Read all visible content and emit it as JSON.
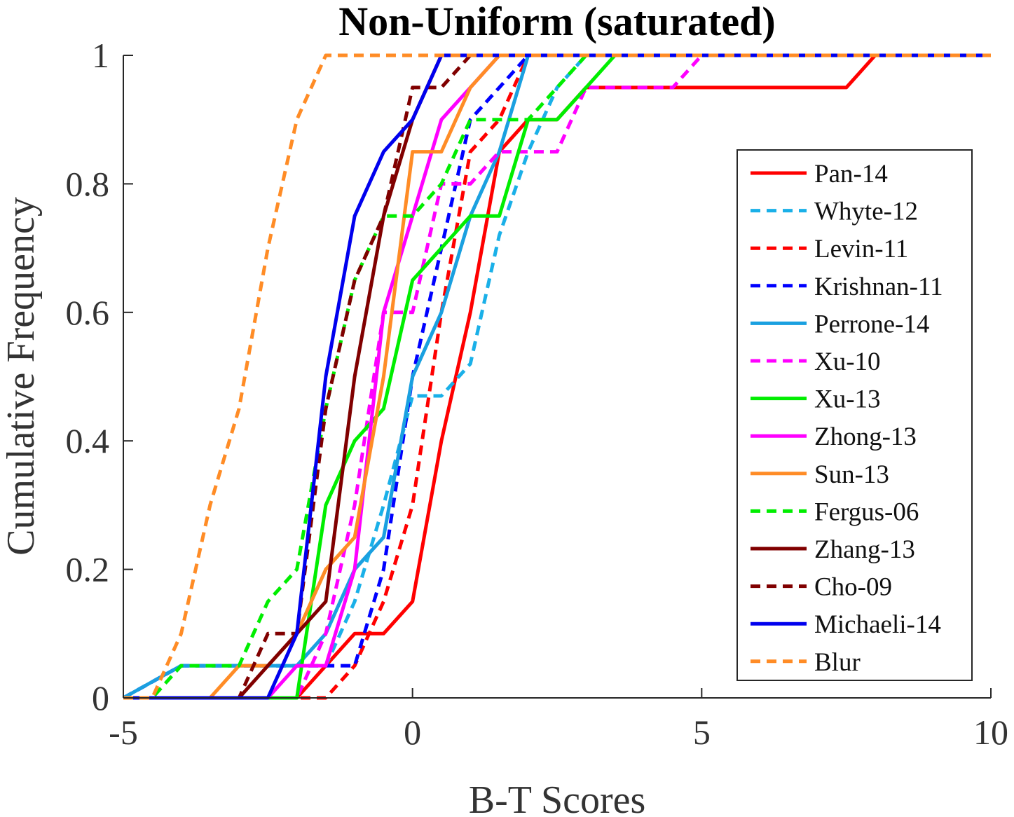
{
  "chart_data": {
    "type": "line",
    "title": "Non-Uniform (saturated)",
    "xlabel": "B-T Scores",
    "ylabel": "Cumulative Frequency",
    "xlim": [
      -5,
      10
    ],
    "ylim": [
      0,
      1
    ],
    "xticks": [
      -5,
      0,
      5,
      10
    ],
    "xtick_labels": [
      "-5",
      "0",
      "5",
      "10"
    ],
    "yticks": [
      0,
      0.2,
      0.4,
      0.6,
      0.8,
      1
    ],
    "ytick_labels": [
      "0",
      "0.2",
      "0.4",
      "0.6",
      "0.8",
      "1"
    ],
    "legend_position": "right",
    "series": [
      {
        "name": "Pan-14",
        "color": "#ff0000",
        "dashed": false,
        "points": [
          [
            -5,
            0
          ],
          [
            -2,
            0
          ],
          [
            -1.5,
            0.05
          ],
          [
            -1,
            0.1
          ],
          [
            -0.5,
            0.1
          ],
          [
            0,
            0.15
          ],
          [
            0.5,
            0.4
          ],
          [
            1,
            0.6
          ],
          [
            1.5,
            0.85
          ],
          [
            2,
            0.9
          ],
          [
            2.5,
            0.9
          ],
          [
            3,
            0.95
          ],
          [
            7.5,
            0.95
          ],
          [
            8,
            1
          ],
          [
            10,
            1
          ]
        ]
      },
      {
        "name": "Whyte-12",
        "color": "#1ab0e8",
        "dashed": true,
        "points": [
          [
            -5,
            0
          ],
          [
            -4,
            0.05
          ],
          [
            -1.5,
            0.05
          ],
          [
            -1,
            0.15
          ],
          [
            -0.5,
            0.3
          ],
          [
            0,
            0.47
          ],
          [
            0.5,
            0.47
          ],
          [
            1,
            0.52
          ],
          [
            1.5,
            0.72
          ],
          [
            2,
            0.85
          ],
          [
            2.5,
            0.95
          ],
          [
            3,
            1
          ],
          [
            10,
            1
          ]
        ]
      },
      {
        "name": "Levin-11",
        "color": "#ff0000",
        "dashed": true,
        "points": [
          [
            -5,
            0
          ],
          [
            -1.5,
            0
          ],
          [
            -1,
            0.05
          ],
          [
            -0.5,
            0.15
          ],
          [
            0,
            0.3
          ],
          [
            0.5,
            0.6
          ],
          [
            1,
            0.85
          ],
          [
            1.5,
            0.9
          ],
          [
            2,
            1
          ],
          [
            10,
            1
          ]
        ]
      },
      {
        "name": "Krishnan-11",
        "color": "#0000ff",
        "dashed": true,
        "points": [
          [
            -5,
            0
          ],
          [
            -4,
            0.05
          ],
          [
            -1,
            0.05
          ],
          [
            -0.5,
            0.2
          ],
          [
            0,
            0.5
          ],
          [
            0.5,
            0.7
          ],
          [
            1,
            0.9
          ],
          [
            1.5,
            0.95
          ],
          [
            2,
            1
          ],
          [
            10,
            1
          ]
        ]
      },
      {
        "name": "Perrone-14",
        "color": "#1aa0e0",
        "dashed": false,
        "points": [
          [
            -5,
            0
          ],
          [
            -4,
            0.05
          ],
          [
            -2,
            0.05
          ],
          [
            -1.5,
            0.1
          ],
          [
            -1,
            0.2
          ],
          [
            -0.5,
            0.25
          ],
          [
            0,
            0.5
          ],
          [
            0.5,
            0.6
          ],
          [
            1,
            0.75
          ],
          [
            1.5,
            0.85
          ],
          [
            2,
            1
          ],
          [
            10,
            1
          ]
        ]
      },
      {
        "name": "Xu-10",
        "color": "#ff00ff",
        "dashed": true,
        "points": [
          [
            -5,
            0
          ],
          [
            -2,
            0
          ],
          [
            -1.5,
            0.1
          ],
          [
            -1,
            0.3
          ],
          [
            -0.5,
            0.6
          ],
          [
            0,
            0.6
          ],
          [
            0.5,
            0.8
          ],
          [
            1,
            0.8
          ],
          [
            1.5,
            0.85
          ],
          [
            2.5,
            0.85
          ],
          [
            3,
            0.95
          ],
          [
            4.5,
            0.95
          ],
          [
            5,
            1
          ],
          [
            10,
            1
          ]
        ]
      },
      {
        "name": "Xu-13",
        "color": "#00ee00",
        "dashed": false,
        "points": [
          [
            -5,
            0
          ],
          [
            -2,
            0
          ],
          [
            -1.5,
            0.3
          ],
          [
            -1,
            0.4
          ],
          [
            -0.5,
            0.45
          ],
          [
            0,
            0.65
          ],
          [
            0.5,
            0.7
          ],
          [
            1,
            0.75
          ],
          [
            1.5,
            0.75
          ],
          [
            2,
            0.9
          ],
          [
            2.5,
            0.9
          ],
          [
            3,
            0.95
          ],
          [
            3.5,
            1
          ],
          [
            10,
            1
          ]
        ]
      },
      {
        "name": "Zhong-13",
        "color": "#ff00ff",
        "dashed": false,
        "points": [
          [
            -5,
            0
          ],
          [
            -2.5,
            0
          ],
          [
            -2,
            0.05
          ],
          [
            -1.5,
            0.05
          ],
          [
            -1,
            0.2
          ],
          [
            -0.5,
            0.6
          ],
          [
            0,
            0.75
          ],
          [
            0.5,
            0.9
          ],
          [
            1,
            0.95
          ],
          [
            1.5,
            1
          ],
          [
            10,
            1
          ]
        ]
      },
      {
        "name": "Sun-13",
        "color": "#ff8c26",
        "dashed": false,
        "points": [
          [
            -5,
            0
          ],
          [
            -3.5,
            0
          ],
          [
            -3,
            0.05
          ],
          [
            -2.5,
            0.05
          ],
          [
            -2,
            0.1
          ],
          [
            -1.5,
            0.2
          ],
          [
            -1,
            0.25
          ],
          [
            -0.5,
            0.5
          ],
          [
            0,
            0.85
          ],
          [
            0.5,
            0.85
          ],
          [
            1,
            0.95
          ],
          [
            1.5,
            1
          ],
          [
            10,
            1
          ]
        ]
      },
      {
        "name": "Fergus-06",
        "color": "#00ee00",
        "dashed": true,
        "points": [
          [
            -5,
            0
          ],
          [
            -4.5,
            0
          ],
          [
            -4,
            0.05
          ],
          [
            -3,
            0.05
          ],
          [
            -2.5,
            0.15
          ],
          [
            -2,
            0.2
          ],
          [
            -1.5,
            0.45
          ],
          [
            -1,
            0.65
          ],
          [
            -0.5,
            0.75
          ],
          [
            0,
            0.75
          ],
          [
            0.5,
            0.8
          ],
          [
            1,
            0.9
          ],
          [
            2,
            0.9
          ],
          [
            2.5,
            0.95
          ],
          [
            3,
            1
          ],
          [
            10,
            1
          ]
        ]
      },
      {
        "name": "Zhang-13",
        "color": "#800000",
        "dashed": false,
        "points": [
          [
            -5,
            0
          ],
          [
            -3,
            0
          ],
          [
            -2.5,
            0.05
          ],
          [
            -2,
            0.1
          ],
          [
            -1.5,
            0.15
          ],
          [
            -1,
            0.5
          ],
          [
            -0.5,
            0.75
          ],
          [
            0,
            0.9
          ],
          [
            0.5,
            1
          ],
          [
            10,
            1
          ]
        ]
      },
      {
        "name": "Cho-09",
        "color": "#800000",
        "dashed": true,
        "points": [
          [
            -5,
            0
          ],
          [
            -3,
            0
          ],
          [
            -2.5,
            0.1
          ],
          [
            -2,
            0.1
          ],
          [
            -1.5,
            0.45
          ],
          [
            -1,
            0.65
          ],
          [
            -0.5,
            0.75
          ],
          [
            0,
            0.95
          ],
          [
            0.5,
            0.95
          ],
          [
            1,
            1
          ],
          [
            10,
            1
          ]
        ]
      },
      {
        "name": "Michaeli-14",
        "color": "#0000ee",
        "dashed": false,
        "points": [
          [
            -5,
            0
          ],
          [
            -2.5,
            0
          ],
          [
            -2,
            0.1
          ],
          [
            -1.5,
            0.5
          ],
          [
            -1,
            0.75
          ],
          [
            -0.5,
            0.85
          ],
          [
            0,
            0.9
          ],
          [
            0.5,
            1
          ],
          [
            10,
            1
          ]
        ]
      },
      {
        "name": "Blur",
        "color": "#ff8c26",
        "dashed": true,
        "points": [
          [
            -5,
            0
          ],
          [
            -4.5,
            0
          ],
          [
            -4,
            0.1
          ],
          [
            -3.5,
            0.3
          ],
          [
            -3,
            0.45
          ],
          [
            -2.5,
            0.7
          ],
          [
            -2,
            0.9
          ],
          [
            -1.5,
            1
          ],
          [
            10,
            1
          ]
        ]
      }
    ]
  }
}
